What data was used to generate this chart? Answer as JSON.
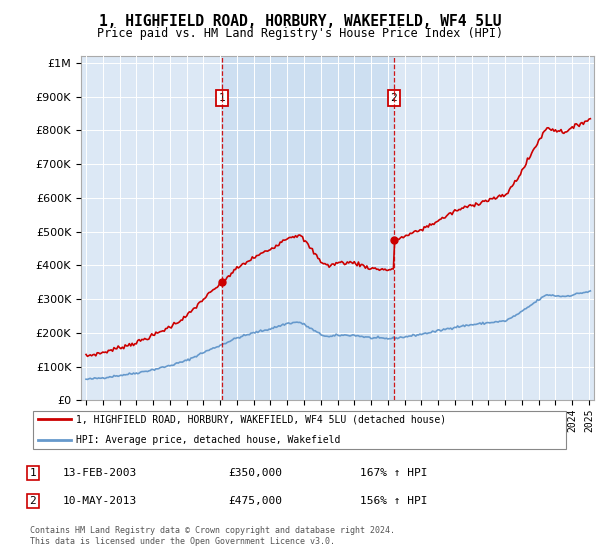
{
  "title": "1, HIGHFIELD ROAD, HORBURY, WAKEFIELD, WF4 5LU",
  "subtitle": "Price paid vs. HM Land Registry's House Price Index (HPI)",
  "legend_line1": "1, HIGHFIELD ROAD, HORBURY, WAKEFIELD, WF4 5LU (detached house)",
  "legend_line2": "HPI: Average price, detached house, Wakefield",
  "footer": "Contains HM Land Registry data © Crown copyright and database right 2024.\nThis data is licensed under the Open Government Licence v3.0.",
  "sale1_date": "13-FEB-2003",
  "sale1_price": "£350,000",
  "sale1_hpi": "167% ↑ HPI",
  "sale1_year": 2003.12,
  "sale1_value": 350000,
  "sale2_date": "10-MAY-2013",
  "sale2_price": "£475,000",
  "sale2_hpi": "156% ↑ HPI",
  "sale2_year": 2013.37,
  "sale2_value": 475000,
  "plot_background": "#dce8f5",
  "shade_color": "#d0e4f5",
  "red_color": "#cc0000",
  "blue_color": "#6699cc",
  "grid_color": "#bbbbbb",
  "ylim_max": 1000000,
  "xlim_start": 1994.7,
  "xlim_end": 2025.3
}
